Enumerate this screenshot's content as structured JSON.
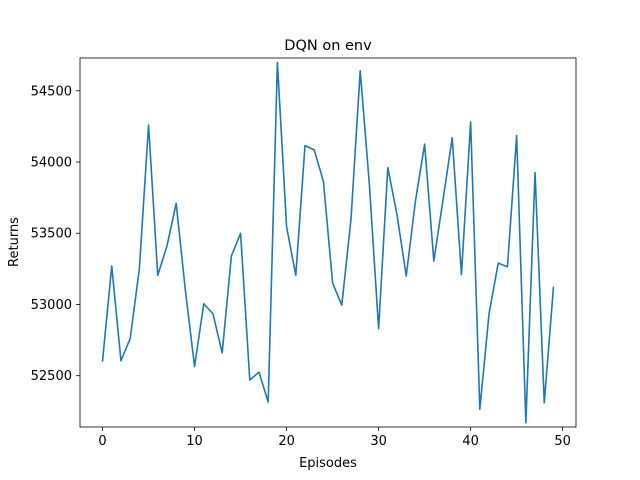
{
  "chart_data": {
    "type": "line",
    "title": "DQN on env",
    "xlabel": "Episodes",
    "ylabel": "Returns",
    "xlim": [
      -2.45,
      51.45
    ],
    "ylim": [
      52140,
      54730
    ],
    "xticks": [
      0,
      10,
      20,
      30,
      40,
      50
    ],
    "yticks": [
      52500,
      53000,
      53500,
      54000,
      54500
    ],
    "xtick_labels": [
      "0",
      "10",
      "20",
      "30",
      "40",
      "50"
    ],
    "ytick_labels": [
      "52500",
      "53000",
      "53500",
      "54000",
      "54500"
    ],
    "grid": false,
    "legend": "none",
    "series": [
      {
        "color": "#1f77b4",
        "x": [
          0,
          1,
          2,
          3,
          4,
          5,
          6,
          7,
          8,
          9,
          10,
          11,
          12,
          13,
          14,
          15,
          16,
          17,
          18,
          19,
          20,
          21,
          22,
          23,
          24,
          25,
          26,
          27,
          28,
          29,
          30,
          31,
          32,
          33,
          34,
          35,
          36,
          37,
          38,
          39,
          40,
          41,
          42,
          43,
          44,
          45,
          46,
          47,
          48,
          49
        ],
        "y": [
          52605,
          53270,
          52605,
          52760,
          53250,
          54260,
          53205,
          53410,
          53710,
          53100,
          52565,
          53005,
          52935,
          52660,
          53340,
          53500,
          52470,
          52525,
          52315,
          54700,
          53545,
          53205,
          54115,
          54085,
          53865,
          53150,
          52995,
          53600,
          54640,
          53840,
          52830,
          53960,
          53630,
          53200,
          53725,
          54125,
          53305,
          53735,
          54170,
          53210,
          54280,
          52265,
          52935,
          53290,
          53265,
          54185,
          52170,
          53925,
          52310,
          53120
        ]
      }
    ]
  }
}
